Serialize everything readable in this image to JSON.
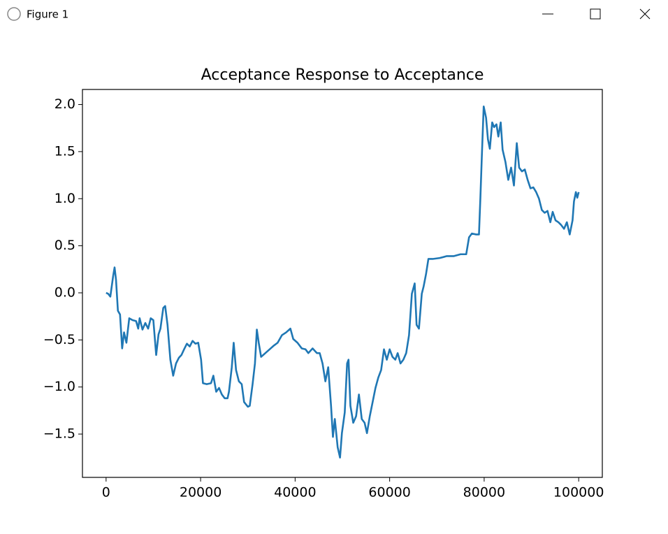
{
  "window": {
    "title": "Figure 1"
  },
  "chart_data": {
    "type": "line",
    "title": "Acceptance Response to Acceptance",
    "x": [
      0,
      443,
      900,
      1200,
      1500,
      1800,
      2100,
      2500,
      2950,
      3400,
      3800,
      4300,
      4900,
      5600,
      6350,
      6800,
      7100,
      7700,
      8300,
      8900,
      9450,
      10000,
      10600,
      11100,
      11500,
      12100,
      12500,
      13000,
      13600,
      14200,
      14800,
      15400,
      15950,
      16500,
      17100,
      17700,
      18300,
      18900,
      19500,
      20100,
      20500,
      21300,
      22200,
      22700,
      23300,
      23900,
      24500,
      25100,
      25700,
      26000,
      26600,
      27000,
      27500,
      28100,
      28700,
      29200,
      30000,
      30400,
      31000,
      31500,
      31900,
      32300,
      32800,
      33700,
      34600,
      35500,
      36300,
      37200,
      38100,
      39000,
      39600,
      40500,
      41400,
      42200,
      42800,
      43700,
      44600,
      45200,
      45800,
      46400,
      47000,
      47600,
      48000,
      48400,
      49000,
      49500,
      49900,
      50500,
      51000,
      51300,
      51700,
      52300,
      52900,
      53500,
      54100,
      54700,
      55200,
      55800,
      56400,
      57000,
      57600,
      58200,
      58800,
      59400,
      60000,
      60600,
      61200,
      61700,
      62300,
      62900,
      63500,
      64100,
      64700,
      65300,
      65700,
      66200,
      66800,
      67200,
      67700,
      68200,
      69100,
      70600,
      72100,
      73600,
      75000,
      76200,
      76800,
      77400,
      78300,
      78900,
      79200,
      79500,
      79900,
      80400,
      80800,
      81200,
      81700,
      82100,
      82600,
      83000,
      83500,
      83900,
      84500,
      85100,
      85700,
      86300,
      86900,
      87400,
      88000,
      88600,
      89200,
      89800,
      90400,
      91000,
      91600,
      92200,
      92800,
      93400,
      94000,
      94500,
      95100,
      95700,
      96300,
      96900,
      97500,
      98100,
      98700,
      99000,
      99400,
      99700,
      100000
    ],
    "series": [
      {
        "color": "#1f77b4",
        "values": [
          0,
          -0.01,
          -0.04,
          0.07,
          0.18,
          0.27,
          0.14,
          -0.19,
          -0.23,
          -0.59,
          -0.42,
          -0.53,
          -0.27,
          -0.29,
          -0.3,
          -0.38,
          -0.27,
          -0.39,
          -0.32,
          -0.38,
          -0.27,
          -0.29,
          -0.66,
          -0.44,
          -0.38,
          -0.16,
          -0.14,
          -0.34,
          -0.71,
          -0.88,
          -0.75,
          -0.69,
          -0.66,
          -0.6,
          -0.54,
          -0.57,
          -0.51,
          -0.54,
          -0.53,
          -0.71,
          -0.96,
          -0.97,
          -0.96,
          -0.88,
          -1.05,
          -1.01,
          -1.08,
          -1.12,
          -1.12,
          -1.05,
          -0.79,
          -0.53,
          -0.82,
          -0.94,
          -0.97,
          -1.16,
          -1.21,
          -1.2,
          -0.97,
          -0.75,
          -0.39,
          -0.53,
          -0.68,
          -0.64,
          -0.6,
          -0.56,
          -0.53,
          -0.45,
          -0.42,
          -0.38,
          -0.49,
          -0.53,
          -0.59,
          -0.6,
          -0.64,
          -0.59,
          -0.64,
          -0.64,
          -0.75,
          -0.94,
          -0.79,
          -1.2,
          -1.53,
          -1.34,
          -1.64,
          -1.75,
          -1.49,
          -1.27,
          -0.75,
          -0.71,
          -1.2,
          -1.38,
          -1.31,
          -1.08,
          -1.34,
          -1.38,
          -1.49,
          -1.31,
          -1.16,
          -1.01,
          -0.9,
          -0.82,
          -0.6,
          -0.71,
          -0.6,
          -0.68,
          -0.71,
          -0.64,
          -0.75,
          -0.71,
          -0.64,
          -0.45,
          -0.01,
          0.1,
          -0.34,
          -0.38,
          -0.01,
          0.07,
          0.2,
          0.36,
          0.36,
          0.37,
          0.39,
          0.39,
          0.41,
          0.41,
          0.59,
          0.63,
          0.62,
          0.62,
          1.01,
          1.44,
          1.98,
          1.86,
          1.63,
          1.53,
          1.81,
          1.76,
          1.79,
          1.66,
          1.81,
          1.52,
          1.39,
          1.2,
          1.33,
          1.14,
          1.59,
          1.33,
          1.29,
          1.31,
          1.2,
          1.11,
          1.12,
          1.07,
          1,
          0.88,
          0.85,
          0.87,
          0.75,
          0.86,
          0.77,
          0.75,
          0.72,
          0.68,
          0.75,
          0.62,
          0.77,
          0.97,
          1.07,
          1.01,
          1.07
        ]
      }
    ],
    "xlim": [
      -5000,
      105000
    ],
    "xticks": [
      0,
      20000,
      40000,
      60000,
      80000,
      100000
    ],
    "ylim": [
      -1.96,
      2.16
    ],
    "yticks": [
      {
        "value": -1.5,
        "label": "−1.5"
      },
      {
        "value": -1,
        "label": "−1.0"
      },
      {
        "value": -0.5,
        "label": "−0.5"
      },
      {
        "value": 0,
        "label": "0.0"
      },
      0.5,
      {
        "value": 1,
        "label": "1.0"
      },
      1.5,
      {
        "value": 2,
        "label": "2.0"
      }
    ]
  }
}
